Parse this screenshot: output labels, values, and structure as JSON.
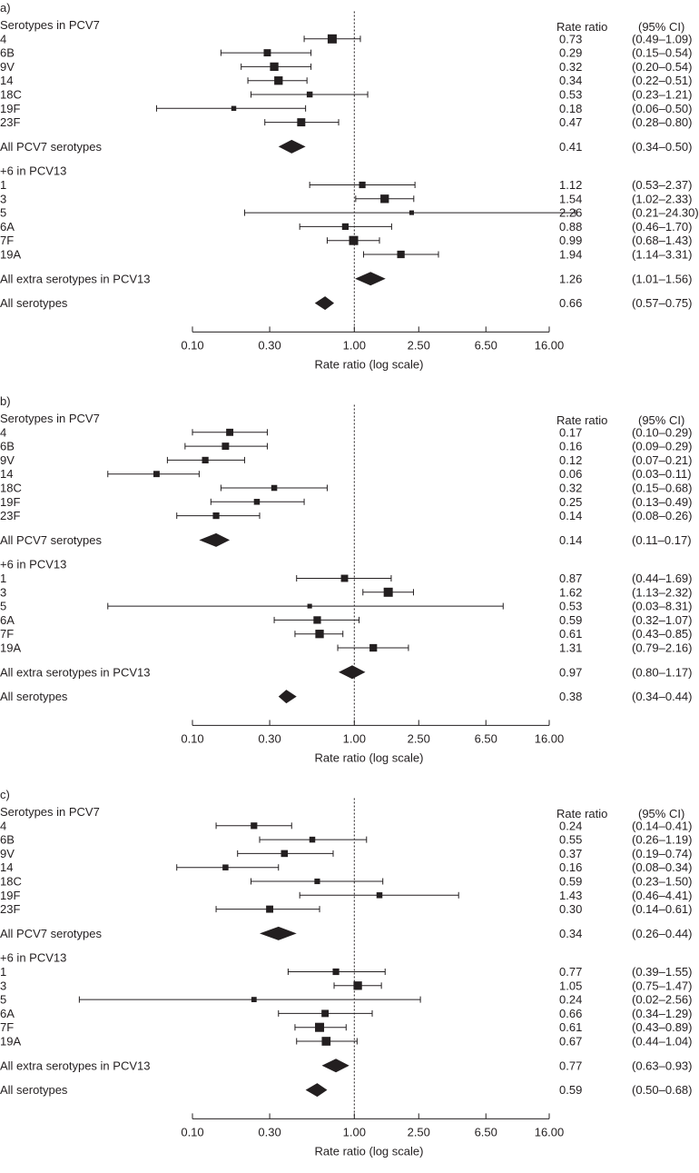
{
  "chart_data": [
    {
      "type": "forest",
      "panel_label": "a)",
      "header": {
        "rate": "Rate ratio",
        "ci": "(95% CI)"
      },
      "xlabel": "Rate ratio (log scale)",
      "xticks": [
        {
          "value": 0.1,
          "label": "0.10"
        },
        {
          "value": 0.3,
          "label": "0.30"
        },
        {
          "value": 1.0,
          "label": "1.00"
        },
        {
          "value": 2.5,
          "label": "2.50"
        },
        {
          "value": 6.5,
          "label": "6.50"
        },
        {
          "value": 16.0,
          "label": "16.00"
        }
      ],
      "rows": [
        {
          "kind": "header",
          "label": "Serotypes in PCV7"
        },
        {
          "kind": "point",
          "label": "4",
          "est": 0.73,
          "lo": 0.49,
          "hi": 1.09,
          "weight": 1.0,
          "rate_text": "0.73",
          "ci_text": "(0.49–1.09)"
        },
        {
          "kind": "point",
          "label": "6B",
          "est": 0.29,
          "lo": 0.15,
          "hi": 0.54,
          "weight": 0.7,
          "rate_text": "0.29",
          "ci_text": "(0.15–0.54)"
        },
        {
          "kind": "point",
          "label": "9V",
          "est": 0.32,
          "lo": 0.2,
          "hi": 0.54,
          "weight": 0.9,
          "rate_text": "0.32",
          "ci_text": "(0.20–0.54)"
        },
        {
          "kind": "point",
          "label": "14",
          "est": 0.34,
          "lo": 0.22,
          "hi": 0.51,
          "weight": 0.9,
          "rate_text": "0.34",
          "ci_text": "(0.22–0.51)"
        },
        {
          "kind": "point",
          "label": "18C",
          "est": 0.53,
          "lo": 0.23,
          "hi": 1.21,
          "weight": 0.5,
          "rate_text": "0.53",
          "ci_text": "(0.23–1.21)"
        },
        {
          "kind": "point",
          "label": "19F",
          "est": 0.18,
          "lo": 0.06,
          "hi": 0.5,
          "weight": 0.35,
          "rate_text": "0.18",
          "ci_text": "(0.06–0.50)"
        },
        {
          "kind": "point",
          "label": "23F",
          "est": 0.47,
          "lo": 0.28,
          "hi": 0.8,
          "weight": 0.85,
          "rate_text": "0.47",
          "ci_text": "(0.28–0.80)"
        },
        {
          "kind": "gap"
        },
        {
          "kind": "summary",
          "label": "All PCV7 serotypes",
          "est": 0.41,
          "lo": 0.34,
          "hi": 0.5,
          "rate_text": "0.41",
          "ci_text": "(0.34–0.50)"
        },
        {
          "kind": "gap"
        },
        {
          "kind": "header",
          "label": "+6 in PCV13"
        },
        {
          "kind": "point",
          "label": "1",
          "est": 1.12,
          "lo": 0.53,
          "hi": 2.37,
          "weight": 0.6,
          "rate_text": "1.12",
          "ci_text": "(0.53–2.37)"
        },
        {
          "kind": "point",
          "label": "3",
          "est": 1.54,
          "lo": 1.02,
          "hi": 2.33,
          "weight": 0.9,
          "rate_text": "1.54",
          "ci_text": "(1.02–2.33)"
        },
        {
          "kind": "point",
          "label": "5",
          "est": 2.26,
          "lo": 0.21,
          "hi": 24.3,
          "weight": 0.3,
          "rate_text": "2.26",
          "ci_text": "(0.21–24.30)"
        },
        {
          "kind": "point",
          "label": "6A",
          "est": 0.88,
          "lo": 0.46,
          "hi": 1.7,
          "weight": 0.6,
          "rate_text": "0.88",
          "ci_text": "(0.46–1.70)"
        },
        {
          "kind": "point",
          "label": "7F",
          "est": 0.99,
          "lo": 0.68,
          "hi": 1.43,
          "weight": 1.0,
          "rate_text": "0.99",
          "ci_text": "(0.68–1.43)"
        },
        {
          "kind": "point",
          "label": "19A",
          "est": 1.94,
          "lo": 1.14,
          "hi": 3.31,
          "weight": 0.75,
          "rate_text": "1.94",
          "ci_text": "(1.14–3.31)"
        },
        {
          "kind": "gap"
        },
        {
          "kind": "summary",
          "label": "All extra serotypes in PCV13",
          "est": 1.26,
          "lo": 1.01,
          "hi": 1.56,
          "rate_text": "1.26",
          "ci_text": "(1.01–1.56)"
        },
        {
          "kind": "gap"
        },
        {
          "kind": "summary",
          "label": "All serotypes",
          "est": 0.66,
          "lo": 0.57,
          "hi": 0.75,
          "rate_text": "0.66",
          "ci_text": "(0.57–0.75)"
        }
      ]
    },
    {
      "type": "forest",
      "panel_label": "b)",
      "header": {
        "rate": "Rate ratio",
        "ci": "(95% CI)"
      },
      "xlabel": "Rate ratio (log scale)",
      "xticks": [
        {
          "value": 0.1,
          "label": "0.10"
        },
        {
          "value": 0.3,
          "label": "0.30"
        },
        {
          "value": 1.0,
          "label": "1.00"
        },
        {
          "value": 2.5,
          "label": "2.50"
        },
        {
          "value": 6.5,
          "label": "6.50"
        },
        {
          "value": 16.0,
          "label": "16.00"
        }
      ],
      "rows": [
        {
          "kind": "header",
          "label": "Serotypes in PCV7"
        },
        {
          "kind": "point",
          "label": "4",
          "est": 0.17,
          "lo": 0.1,
          "hi": 0.29,
          "weight": 0.7,
          "rate_text": "0.17",
          "ci_text": "(0.10–0.29)"
        },
        {
          "kind": "point",
          "label": "6B",
          "est": 0.16,
          "lo": 0.09,
          "hi": 0.29,
          "weight": 0.7,
          "rate_text": "0.16",
          "ci_text": "(0.09–0.29)"
        },
        {
          "kind": "point",
          "label": "9V",
          "est": 0.12,
          "lo": 0.07,
          "hi": 0.21,
          "weight": 0.6,
          "rate_text": "0.12",
          "ci_text": "(0.07–0.21)"
        },
        {
          "kind": "point",
          "label": "14",
          "est": 0.06,
          "lo": 0.03,
          "hi": 0.11,
          "weight": 0.55,
          "rate_text": "0.06",
          "ci_text": "(0.03–0.11)"
        },
        {
          "kind": "point",
          "label": "18C",
          "est": 0.32,
          "lo": 0.15,
          "hi": 0.68,
          "weight": 0.5,
          "rate_text": "0.32",
          "ci_text": "(0.15–0.68)"
        },
        {
          "kind": "point",
          "label": "19F",
          "est": 0.25,
          "lo": 0.13,
          "hi": 0.49,
          "weight": 0.5,
          "rate_text": "0.25",
          "ci_text": "(0.13–0.49)"
        },
        {
          "kind": "point",
          "label": "23F",
          "est": 0.14,
          "lo": 0.08,
          "hi": 0.26,
          "weight": 0.6,
          "rate_text": "0.14",
          "ci_text": "(0.08–0.26)"
        },
        {
          "kind": "gap"
        },
        {
          "kind": "summary",
          "label": "All PCV7 serotypes",
          "est": 0.14,
          "lo": 0.11,
          "hi": 0.17,
          "rate_text": "0.14",
          "ci_text": "(0.11–0.17)"
        },
        {
          "kind": "gap"
        },
        {
          "kind": "header",
          "label": "+6 in PCV13"
        },
        {
          "kind": "point",
          "label": "1",
          "est": 0.87,
          "lo": 0.44,
          "hi": 1.69,
          "weight": 0.7,
          "rate_text": "0.87",
          "ci_text": "(0.44–1.69)"
        },
        {
          "kind": "point",
          "label": "3",
          "est": 1.62,
          "lo": 1.13,
          "hi": 2.32,
          "weight": 1.0,
          "rate_text": "1.62",
          "ci_text": "(1.13–2.32)"
        },
        {
          "kind": "point",
          "label": "5",
          "est": 0.53,
          "lo": 0.03,
          "hi": 8.31,
          "weight": 0.3,
          "rate_text": "0.53",
          "ci_text": "(0.03–8.31)"
        },
        {
          "kind": "point",
          "label": "6A",
          "est": 0.59,
          "lo": 0.32,
          "hi": 1.07,
          "weight": 0.75,
          "rate_text": "0.59",
          "ci_text": "(0.32–1.07)"
        },
        {
          "kind": "point",
          "label": "7F",
          "est": 0.61,
          "lo": 0.43,
          "hi": 0.85,
          "weight": 0.9,
          "rate_text": "0.61",
          "ci_text": "(0.43–0.85)"
        },
        {
          "kind": "point",
          "label": "19A",
          "est": 1.31,
          "lo": 0.79,
          "hi": 2.16,
          "weight": 0.75,
          "rate_text": "1.31",
          "ci_text": "(0.79–2.16)"
        },
        {
          "kind": "gap"
        },
        {
          "kind": "summary",
          "label": "All extra serotypes in PCV13",
          "est": 0.97,
          "lo": 0.8,
          "hi": 1.17,
          "rate_text": "0.97",
          "ci_text": "(0.80–1.17)"
        },
        {
          "kind": "gap"
        },
        {
          "kind": "summary",
          "label": "All serotypes",
          "est": 0.38,
          "lo": 0.34,
          "hi": 0.44,
          "rate_text": "0.38",
          "ci_text": "(0.34–0.44)"
        }
      ]
    },
    {
      "type": "forest",
      "panel_label": "c)",
      "header": {
        "rate": "Rate ratio",
        "ci": "(95% CI)"
      },
      "xlabel": "Rate ratio (log scale)",
      "xticks": [
        {
          "value": 0.1,
          "label": "0.10"
        },
        {
          "value": 0.3,
          "label": "0.30"
        },
        {
          "value": 1.0,
          "label": "1.00"
        },
        {
          "value": 2.5,
          "label": "2.50"
        },
        {
          "value": 6.5,
          "label": "6.50"
        },
        {
          "value": 16.0,
          "label": "16.00"
        }
      ],
      "rows": [
        {
          "kind": "header",
          "label": "Serotypes in PCV7"
        },
        {
          "kind": "point",
          "label": "4",
          "est": 0.24,
          "lo": 0.14,
          "hi": 0.41,
          "weight": 0.6,
          "rate_text": "0.24",
          "ci_text": "(0.14–0.41)"
        },
        {
          "kind": "point",
          "label": "6B",
          "est": 0.55,
          "lo": 0.26,
          "hi": 1.19,
          "weight": 0.5,
          "rate_text": "0.55",
          "ci_text": "(0.26–1.19)"
        },
        {
          "kind": "point",
          "label": "9V",
          "est": 0.37,
          "lo": 0.19,
          "hi": 0.74,
          "weight": 0.65,
          "rate_text": "0.37",
          "ci_text": "(0.19–0.74)"
        },
        {
          "kind": "point",
          "label": "14",
          "est": 0.16,
          "lo": 0.08,
          "hi": 0.34,
          "weight": 0.5,
          "rate_text": "0.16",
          "ci_text": "(0.08–0.34)"
        },
        {
          "kind": "point",
          "label": "18C",
          "est": 0.59,
          "lo": 0.23,
          "hi": 1.5,
          "weight": 0.45,
          "rate_text": "0.59",
          "ci_text": "(0.23–1.50)"
        },
        {
          "kind": "point",
          "label": "19F",
          "est": 1.43,
          "lo": 0.46,
          "hi": 4.41,
          "weight": 0.5,
          "rate_text": "1.43",
          "ci_text": "(0.46–4.41)"
        },
        {
          "kind": "point",
          "label": "23F",
          "est": 0.3,
          "lo": 0.14,
          "hi": 0.61,
          "weight": 0.7,
          "rate_text": "0.30",
          "ci_text": "(0.14–0.61)"
        },
        {
          "kind": "gap"
        },
        {
          "kind": "summary",
          "label": "All PCV7 serotypes",
          "est": 0.34,
          "lo": 0.26,
          "hi": 0.44,
          "rate_text": "0.34",
          "ci_text": "(0.26–0.44)"
        },
        {
          "kind": "gap"
        },
        {
          "kind": "header",
          "label": "+6 in PCV13"
        },
        {
          "kind": "point",
          "label": "1",
          "est": 0.77,
          "lo": 0.39,
          "hi": 1.55,
          "weight": 0.6,
          "rate_text": "0.77",
          "ci_text": "(0.39–1.55)"
        },
        {
          "kind": "point",
          "label": "3",
          "est": 1.05,
          "lo": 0.75,
          "hi": 1.47,
          "weight": 0.9,
          "rate_text": "1.05",
          "ci_text": "(0.75–1.47)"
        },
        {
          "kind": "point",
          "label": "5",
          "est": 0.24,
          "lo": 0.02,
          "hi": 2.56,
          "weight": 0.4,
          "rate_text": "0.24",
          "ci_text": "(0.02–2.56)"
        },
        {
          "kind": "point",
          "label": "6A",
          "est": 0.66,
          "lo": 0.34,
          "hi": 1.29,
          "weight": 0.7,
          "rate_text": "0.66",
          "ci_text": "(0.34–1.29)"
        },
        {
          "kind": "point",
          "label": "7F",
          "est": 0.61,
          "lo": 0.43,
          "hi": 0.89,
          "weight": 1.0,
          "rate_text": "0.61",
          "ci_text": "(0.43–0.89)"
        },
        {
          "kind": "point",
          "label": "19A",
          "est": 0.67,
          "lo": 0.44,
          "hi": 1.04,
          "weight": 0.95,
          "rate_text": "0.67",
          "ci_text": "(0.44–1.04)"
        },
        {
          "kind": "gap"
        },
        {
          "kind": "summary",
          "label": "All extra serotypes in PCV13",
          "est": 0.77,
          "lo": 0.63,
          "hi": 0.93,
          "rate_text": "0.77",
          "ci_text": "(0.63–0.93)"
        },
        {
          "kind": "gap"
        },
        {
          "kind": "summary",
          "label": "All serotypes",
          "est": 0.59,
          "lo": 0.5,
          "hi": 0.68,
          "rate_text": "0.59",
          "ci_text": "(0.50–0.68)"
        }
      ]
    }
  ]
}
